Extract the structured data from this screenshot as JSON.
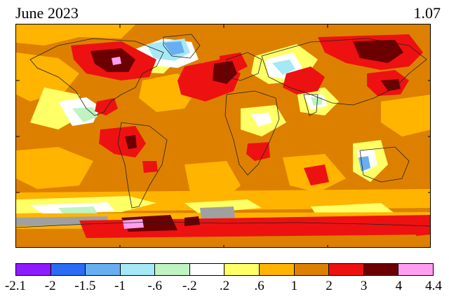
{
  "map": {
    "title": "June 2023",
    "global_mean": "1.07",
    "legend": {
      "bins": [
        {
          "color": "#8e1bff"
        },
        {
          "color": "#2c6cf5"
        },
        {
          "color": "#6aaef2"
        },
        {
          "color": "#a6e9f6"
        },
        {
          "color": "#bff3c2"
        },
        {
          "color": "#ffffff"
        },
        {
          "color": "#ffff66"
        },
        {
          "color": "#ffb400"
        },
        {
          "color": "#dd8000"
        },
        {
          "color": "#ee1111"
        },
        {
          "color": "#6c0000"
        },
        {
          "color": "#ff9ef0"
        }
      ],
      "breaks": [
        "-2.1",
        "-2",
        "-1.5",
        "-1",
        "-.6",
        "-.2",
        ".2",
        ".6",
        "1",
        "2",
        "3",
        "4",
        "4.4"
      ]
    },
    "colors": {
      "background_anomaly": "#dd8000",
      "missing_data": "#a0a0a0"
    }
  }
}
